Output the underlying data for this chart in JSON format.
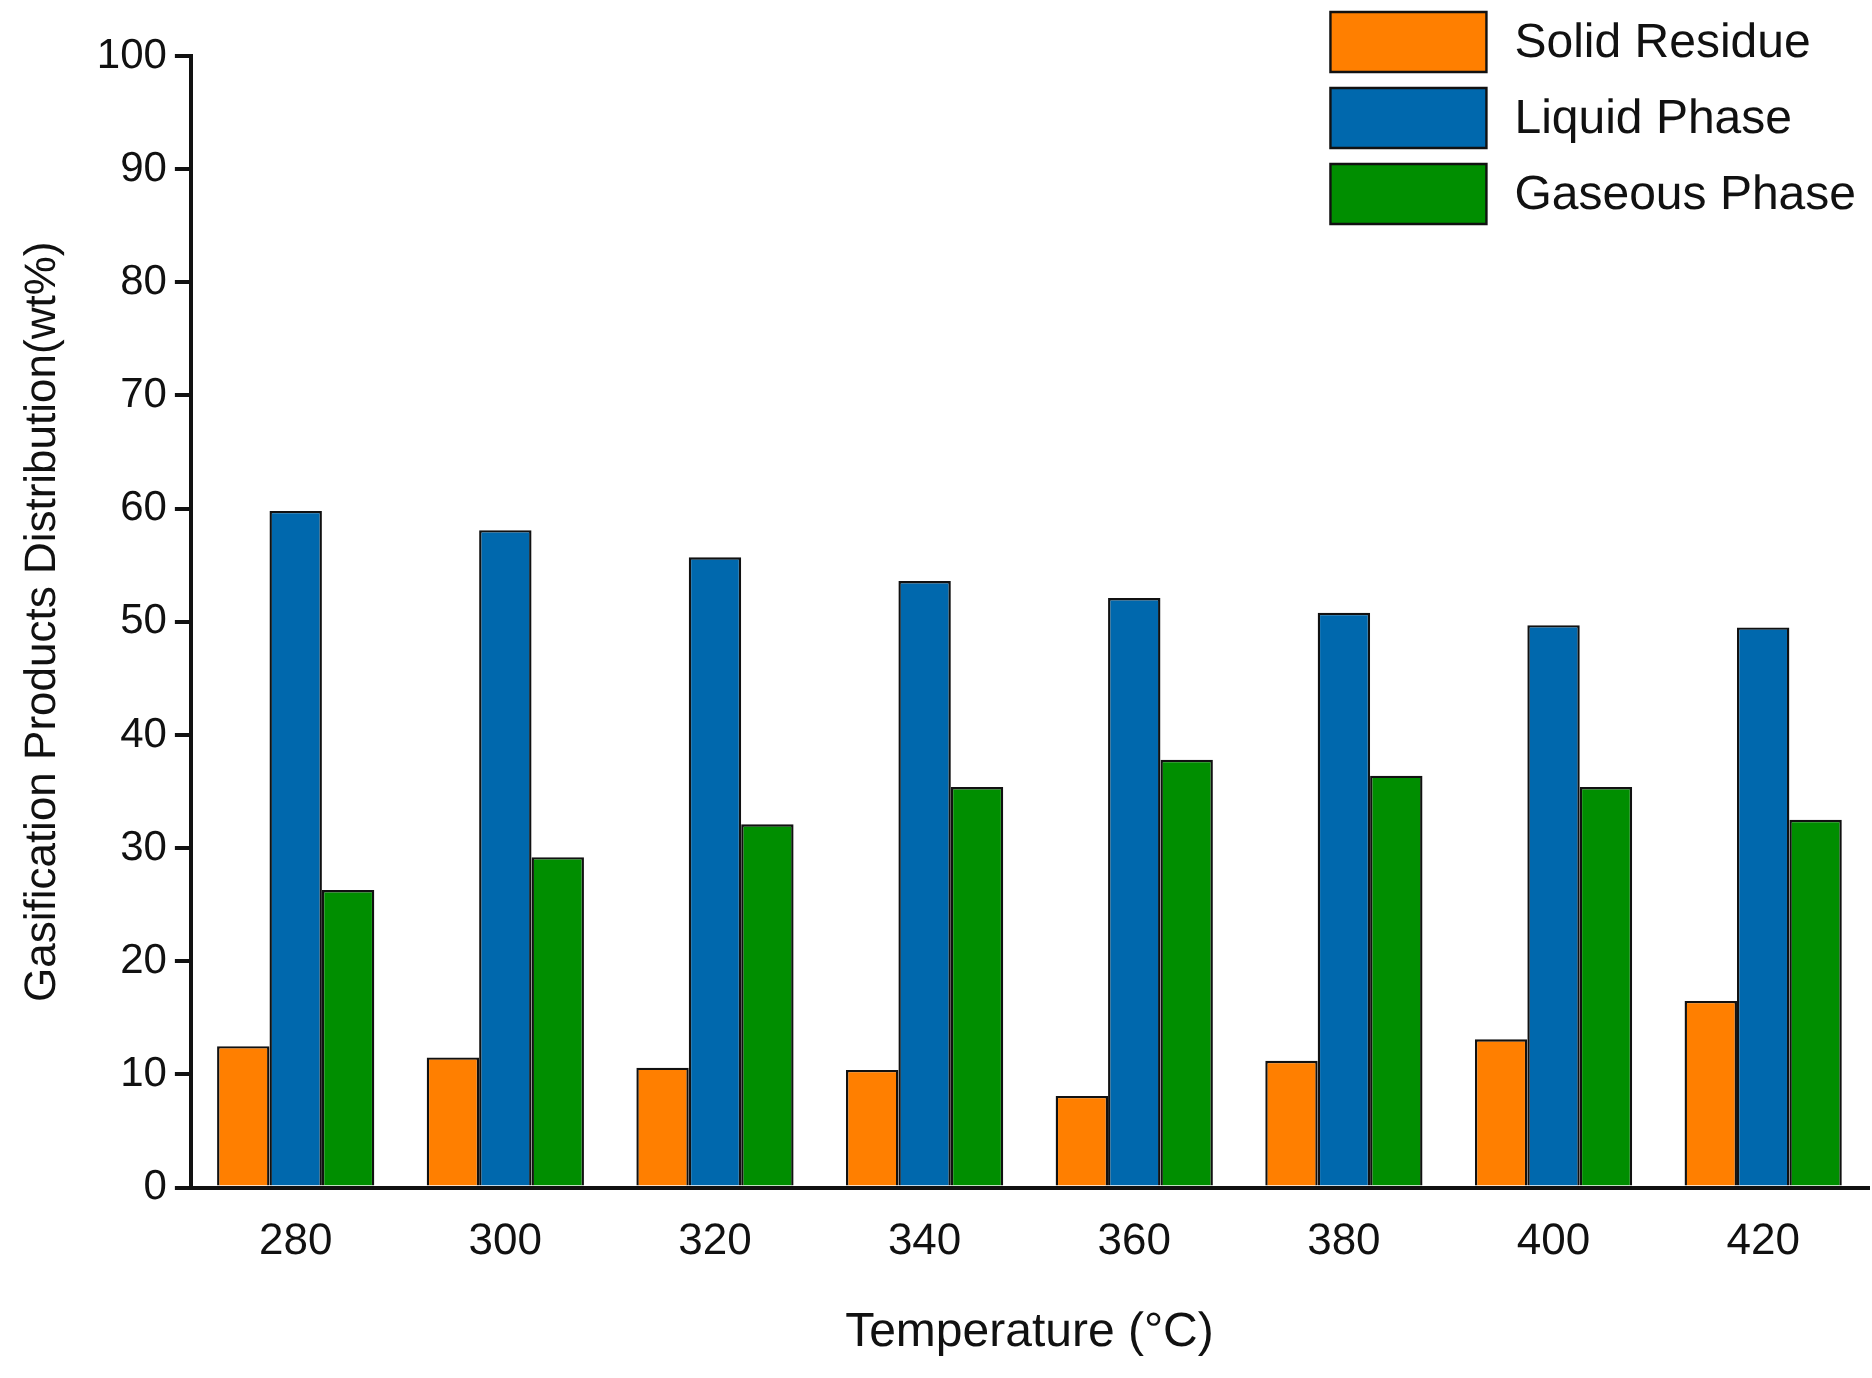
{
  "chart_data": {
    "type": "bar",
    "xlabel": "Temperature (°C)",
    "ylabel": "Gasification Products Distribution(wt%)",
    "categories": [
      "280",
      "300",
      "320",
      "340",
      "360",
      "380",
      "400",
      "420"
    ],
    "series": [
      {
        "name": "Solid Residue",
        "color": "#ff7f00",
        "values": [
          12.5,
          11.5,
          10.6,
          10.4,
          8.1,
          11.2,
          13.1,
          16.5
        ]
      },
      {
        "name": "Liquid Phase",
        "color": "#0068ad",
        "values": [
          59.8,
          58.1,
          55.7,
          53.6,
          52.1,
          50.8,
          49.7,
          49.5
        ]
      },
      {
        "name": "Gaseous Phase",
        "color": "#008e00",
        "values": [
          26.3,
          29.2,
          32.1,
          35.4,
          37.8,
          36.4,
          35.4,
          32.5
        ]
      }
    ],
    "ylim": [
      0,
      100
    ],
    "yticks": [
      0,
      10,
      20,
      30,
      40,
      50,
      60,
      70,
      80,
      90,
      100
    ],
    "grid": false,
    "legend": "top right"
  }
}
